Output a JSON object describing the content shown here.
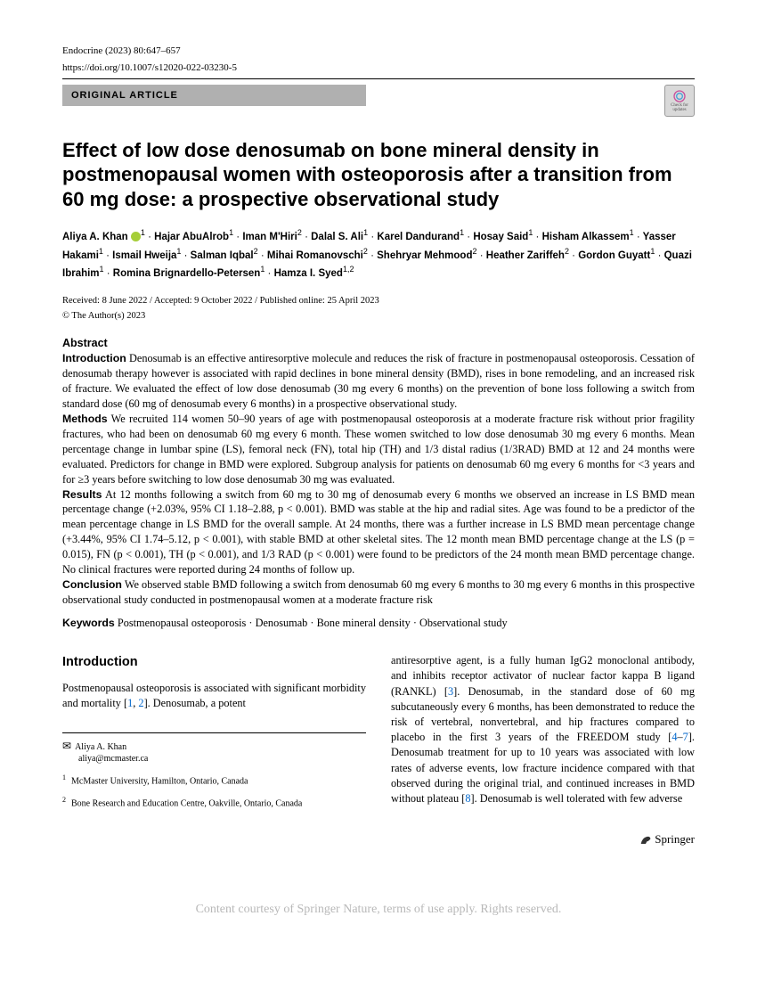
{
  "meta": {
    "journal_ref": "Endocrine (2023) 80:647–657",
    "doi": "https://doi.org/10.1007/s12020-022-03230-5",
    "article_type": "ORIGINAL ARTICLE",
    "updates_label": "Check for updates"
  },
  "title": "Effect of low dose denosumab on bone mineral density in postmenopausal women with osteoporosis after a transition from 60 mg dose: a prospective observational study",
  "authors_html": "Aliya A. Khan <span class='orcid'></span><sup>1</sup> <span class='sep'>·</span> Hajar AbuAlrob<sup>1</sup> <span class='sep'>·</span> Iman M'Hiri<sup>2</sup> <span class='sep'>·</span> Dalal S. Ali<sup>1</sup> <span class='sep'>·</span> Karel Dandurand<sup>1</sup> <span class='sep'>·</span> Hosay Said<sup>1</sup> <span class='sep'>·</span> Hisham Alkassem<sup>1</sup> <span class='sep'>·</span> Yasser Hakami<sup>1</sup> <span class='sep'>·</span> Ismail Hweija<sup>1</sup> <span class='sep'>·</span> Salman Iqbal<sup>2</sup> <span class='sep'>·</span> Mihai Romanovschi<sup>2</sup> <span class='sep'>·</span> Shehryar Mehmood<sup>2</sup> <span class='sep'>·</span> Heather Zariffeh<sup>2</sup> <span class='sep'>·</span> Gordon Guyatt<sup>1</sup> <span class='sep'>·</span> Quazi Ibrahim<sup>1</sup> <span class='sep'>·</span> Romina Brignardello-Petersen<sup>1</sup> <span class='sep'>·</span> Hamza I. Syed<sup>1,2</sup>",
  "dates": "Received: 8 June 2022 / Accepted: 9 October 2022 / Published online: 25 April 2023",
  "copyright": "© The Author(s) 2023",
  "abstract": {
    "heading": "Abstract",
    "intro_label": "Introduction",
    "intro_text": " Denosumab is an effective antiresorptive molecule and reduces the risk of fracture in postmenopausal osteoporosis. Cessation of denosumab therapy however is associated with rapid declines in bone mineral density (BMD), rises in bone remodeling, and an increased risk of fracture. We evaluated the effect of low dose denosumab (30 mg every 6 months) on the prevention of bone loss following a switch from standard dose (60 mg of denosumab every 6 months) in a prospective observational study.",
    "methods_label": "Methods",
    "methods_text": " We recruited 114 women 50–90 years of age with postmenopausal osteoporosis at a moderate fracture risk without prior fragility fractures, who had been on denosumab 60 mg every 6 month. These women switched to low dose denosumab 30 mg every 6 months. Mean percentage change in lumbar spine (LS), femoral neck (FN), total hip (TH) and 1/3 distal radius (1/3RAD) BMD at 12 and 24 months were evaluated. Predictors for change in BMD were explored. Subgroup analysis for patients on denosumab 60 mg every 6 months for <3 years and for ≥3 years before switching to low dose denosumab 30 mg was evaluated.",
    "results_label": "Results",
    "results_text": " At 12 months following a switch from 60 mg to 30 mg of denosumab every 6 months we observed an increase in LS BMD mean percentage change (+2.03%, 95% CI 1.18–2.88, p < 0.001). BMD was stable at the hip and radial sites. Age was found to be a predictor of the mean percentage change in LS BMD for the overall sample. At 24 months, there was a further increase in LS BMD mean percentage change (+3.44%, 95% CI 1.74–5.12, p < 0.001), with stable BMD at other skeletal sites. The 12 month mean BMD percentage change at the LS (p = 0.015), FN (p < 0.001), TH (p < 0.001), and 1/3 RAD (p < 0.001) were found to be predictors of the 24 month mean BMD percentage change. No clinical fractures were reported during 24 months of follow up.",
    "conclusion_label": "Conclusion",
    "conclusion_text": " We observed stable BMD following a switch from denosumab 60 mg every 6 months to 30 mg every 6 months in this prospective observational study conducted in postmenopausal women at a moderate fracture risk"
  },
  "keywords": {
    "label": "Keywords",
    "text": " Postmenopausal osteoporosis · Denosumab · Bone mineral density · Observational study"
  },
  "body": {
    "intro_heading": "Introduction",
    "col1_para": "Postmenopausal osteoporosis is associated with significant morbidity and mortality [",
    "ref1": "1",
    "ref_sep": ", ",
    "ref2": "2",
    "col1_para_tail": "]. Denosumab, a potent",
    "col2_para_a": "antiresorptive agent, is a fully human IgG2 monoclonal antibody, and inhibits receptor activator of nuclear factor kappa B ligand (RANKL) [",
    "ref3": "3",
    "col2_para_b": "]. Denosumab, in the standard dose of 60 mg subcutaneously every 6 months, has been demonstrated to reduce the risk of vertebral, nonvertebral, and hip fractures compared to placebo in the first 3 years of the FREEDOM study [",
    "ref4": "4",
    "ref_dash": "–",
    "ref7": "7",
    "col2_para_c": "]. Denosumab treatment for up to 10 years was associated with low rates of adverse events, low fracture incidence compared with that observed during the original trial, and continued increases in BMD without plateau [",
    "ref8": "8",
    "col2_para_d": "]. Denosumab is well tolerated with few adverse"
  },
  "correspondence": {
    "name": "Aliya A. Khan",
    "email": "aliya@mcmaster.ca"
  },
  "affiliations": [
    {
      "num": "1",
      "text": "McMaster University, Hamilton, Ontario, Canada"
    },
    {
      "num": "2",
      "text": "Bone Research and Education Centre, Oakville, Ontario, Canada"
    }
  ],
  "footer": {
    "brand": "Springer",
    "watermark": "Content courtesy of Springer Nature, terms of use apply. Rights reserved."
  }
}
